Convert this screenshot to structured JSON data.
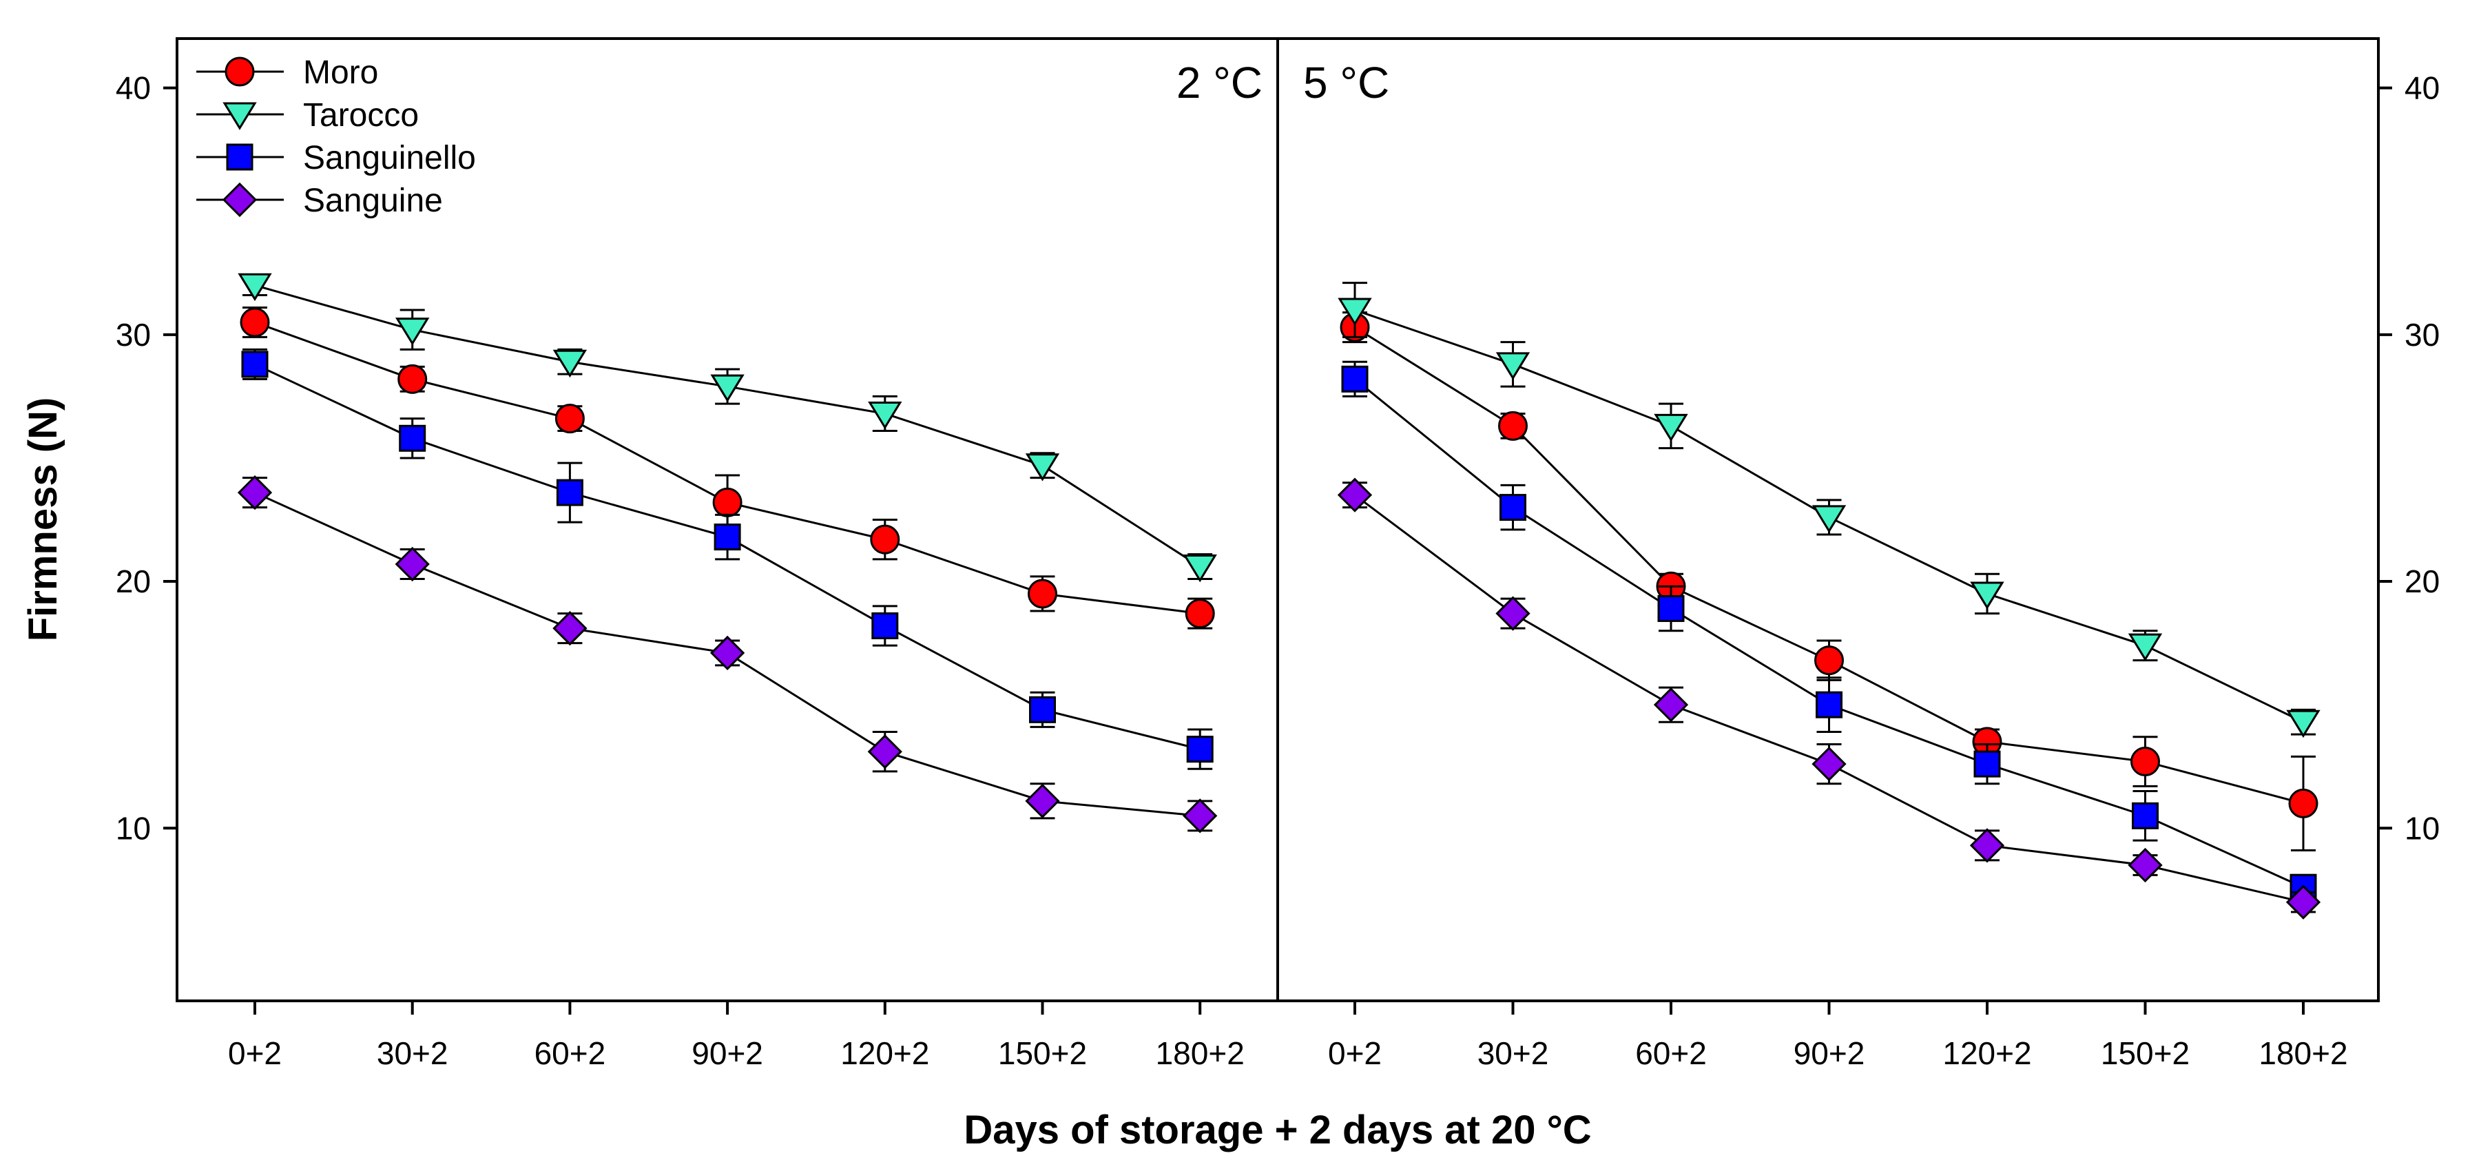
{
  "chart_data": {
    "type": "line",
    "xlabel": "Days of storage + 2 days at 20 °C",
    "ylabel": "Firmness (N)",
    "ylim": [
      3,
      42
    ],
    "yticks": [
      10,
      20,
      30,
      40
    ],
    "categories": [
      "0+2",
      "30+2",
      "60+2",
      "90+2",
      "120+2",
      "150+2",
      "180+2"
    ],
    "legend_position": "top-left",
    "grid": false,
    "series_styles": [
      {
        "name": "Moro",
        "marker": "circle",
        "color": "#ff0000"
      },
      {
        "name": "Tarocco",
        "marker": "triangle-down",
        "color": "#40f0c0"
      },
      {
        "name": "Sanguinello",
        "marker": "square",
        "color": "#0000ff"
      },
      {
        "name": "Sanguine",
        "marker": "diamond",
        "color": "#8800ee"
      }
    ],
    "panels": [
      {
        "label": "2 °C",
        "series": [
          {
            "name": "Moro",
            "values": [
              30.5,
              28.2,
              26.6,
              23.2,
              21.7,
              19.5,
              18.7
            ],
            "errors": [
              0.6,
              0.5,
              0.5,
              1.1,
              0.8,
              0.7,
              0.6
            ]
          },
          {
            "name": "Tarocco",
            "values": [
              32.0,
              30.2,
              28.9,
              27.9,
              26.8,
              24.7,
              20.6
            ],
            "errors": [
              0.4,
              0.8,
              0.5,
              0.7,
              0.7,
              0.5,
              0.5
            ]
          },
          {
            "name": "Sanguinello",
            "values": [
              28.8,
              25.8,
              23.6,
              21.8,
              18.2,
              14.8,
              13.2
            ],
            "errors": [
              0.6,
              0.8,
              1.2,
              0.9,
              0.8,
              0.7,
              0.8
            ]
          },
          {
            "name": "Sanguine",
            "values": [
              23.6,
              20.7,
              18.1,
              17.1,
              13.1,
              11.1,
              10.5
            ],
            "errors": [
              0.6,
              0.6,
              0.6,
              0.5,
              0.8,
              0.7,
              0.6
            ]
          }
        ]
      },
      {
        "label": "5 °C",
        "series": [
          {
            "name": "Moro",
            "values": [
              30.3,
              26.3,
              19.8,
              16.8,
              13.5,
              12.7,
              11.0
            ],
            "errors": [
              0.6,
              0.5,
              0.5,
              0.8,
              0.5,
              1.0,
              1.9
            ]
          },
          {
            "name": "Tarocco",
            "values": [
              31.0,
              28.8,
              26.3,
              22.6,
              19.5,
              17.4,
              14.3
            ],
            "errors": [
              1.1,
              0.9,
              0.9,
              0.7,
              0.8,
              0.6,
              0.5
            ]
          },
          {
            "name": "Sanguinello",
            "values": [
              28.2,
              23.0,
              18.9,
              15.0,
              12.6,
              10.5,
              7.6
            ],
            "errors": [
              0.7,
              0.9,
              0.9,
              1.1,
              0.8,
              1.0,
              0.5
            ]
          },
          {
            "name": "Sanguine",
            "values": [
              23.5,
              18.7,
              15.0,
              12.6,
              9.3,
              8.5,
              7.0
            ],
            "errors": [
              0.5,
              0.6,
              0.7,
              0.8,
              0.6,
              0.4,
              0.4
            ]
          }
        ]
      }
    ]
  }
}
